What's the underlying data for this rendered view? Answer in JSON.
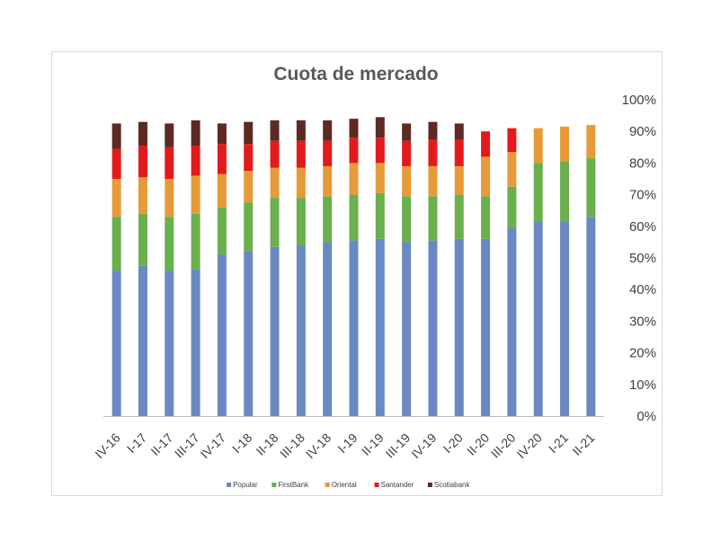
{
  "chart_data": {
    "type": "bar",
    "stacked": true,
    "title": "Cuota de mercado",
    "xlabel": "",
    "ylabel": "",
    "ylim": [
      0,
      100
    ],
    "y_ticks": [
      "0%",
      "10%",
      "20%",
      "30%",
      "40%",
      "50%",
      "60%",
      "70%",
      "80%",
      "90%",
      "100%"
    ],
    "y_axis_position": "right",
    "grid": false,
    "legend_position": "bottom",
    "categories": [
      "IV-16",
      "I-17",
      "II-17",
      "III-17",
      "IV-17",
      "I-18",
      "II-18",
      "III-18",
      "IV-18",
      "I-19",
      "II-19",
      "III-19",
      "IV-19",
      "I-20",
      "II-20",
      "III-20",
      "IV-20",
      "I-21",
      "II-21"
    ],
    "series": [
      {
        "name": "Popular",
        "color": "#6a89c2",
        "values": [
          46,
          47.5,
          46,
          46.5,
          51,
          52,
          53.5,
          54,
          55,
          55.5,
          56,
          55,
          55.5,
          56,
          56,
          59.5,
          61.5,
          61.5,
          63
        ]
      },
      {
        "name": "FirstBank",
        "color": "#6ab04c",
        "values": [
          17,
          16.5,
          17,
          17.5,
          15,
          15.5,
          15.5,
          15,
          14.5,
          14.5,
          14.5,
          14.5,
          14,
          14,
          13.5,
          13,
          18.5,
          19,
          18.5
        ]
      },
      {
        "name": "Oriental",
        "color": "#e69a38",
        "values": [
          12,
          11.5,
          12,
          12,
          10.5,
          10,
          9.5,
          9.5,
          9.5,
          10,
          9.5,
          9.5,
          9.5,
          9,
          12.5,
          11,
          11,
          11,
          10.5
        ]
      },
      {
        "name": "Santander",
        "color": "#e31a1c",
        "values": [
          9.5,
          10,
          10,
          9.5,
          9.5,
          8.5,
          8.5,
          8.5,
          8,
          8,
          8,
          8,
          8.5,
          8.5,
          8,
          7.5,
          0,
          0,
          0
        ]
      },
      {
        "name": "Scotiabank",
        "color": "#5c2a23",
        "values": [
          8,
          7.5,
          7.5,
          8,
          6.5,
          7,
          6.5,
          6.5,
          6.5,
          6,
          6.5,
          5.5,
          5.5,
          5,
          0,
          0,
          0,
          0,
          0
        ]
      }
    ]
  }
}
